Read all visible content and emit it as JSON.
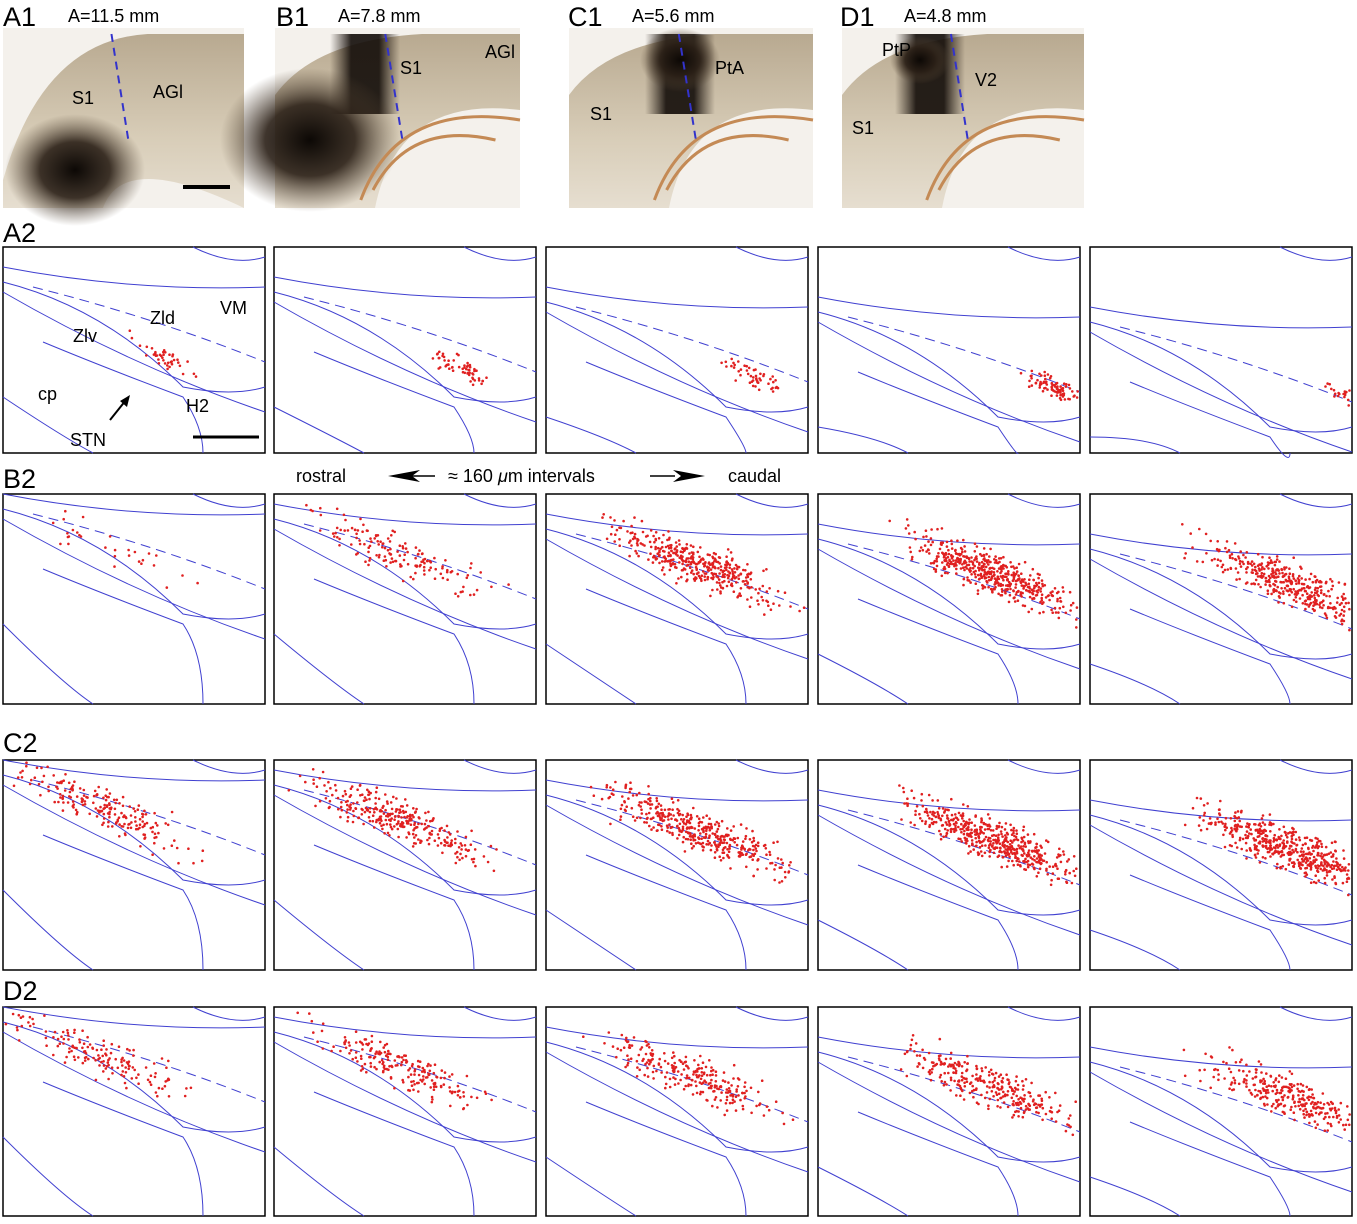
{
  "photos": [
    {
      "label": "A1",
      "position": "A=11.5 mm",
      "regions": [
        "S1",
        "AGl"
      ]
    },
    {
      "label": "B1",
      "position": "A=7.8 mm",
      "regions": [
        "S1",
        "AGl"
      ]
    },
    {
      "label": "C1",
      "position": "A=5.6 mm",
      "regions": [
        "S1",
        "PtA"
      ]
    },
    {
      "label": "D1",
      "position": "A=4.8 mm",
      "regions": [
        "PtP",
        "V2",
        "S1"
      ]
    }
  ],
  "rows": [
    {
      "label": "A2"
    },
    {
      "label": "B2"
    },
    {
      "label": "C2"
    },
    {
      "label": "D2"
    }
  ],
  "structures": [
    "Zld",
    "VM",
    "Zlv",
    "cp",
    "STN",
    "H2"
  ],
  "interval_note": {
    "rostral": "rostral",
    "prefix": "≈ 160",
    "mu": "μ",
    "suffix": "m intervals",
    "caudal": "caudal"
  }
}
